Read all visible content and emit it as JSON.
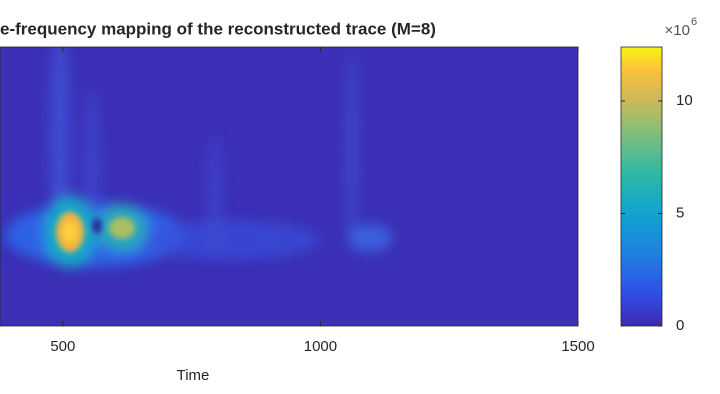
{
  "chart_data": {
    "type": "heatmap",
    "title": "e-frequency mapping of the reconstructed trace (M=8)",
    "xlabel": "Time",
    "xlim": [
      378,
      1500
    ],
    "xticks": [
      500,
      1000,
      1500
    ],
    "colorbar": {
      "clim": [
        0,
        12.4
      ],
      "ticks": [
        0,
        5,
        10
      ],
      "exponent_base": "×10",
      "exponent": "6"
    }
  }
}
